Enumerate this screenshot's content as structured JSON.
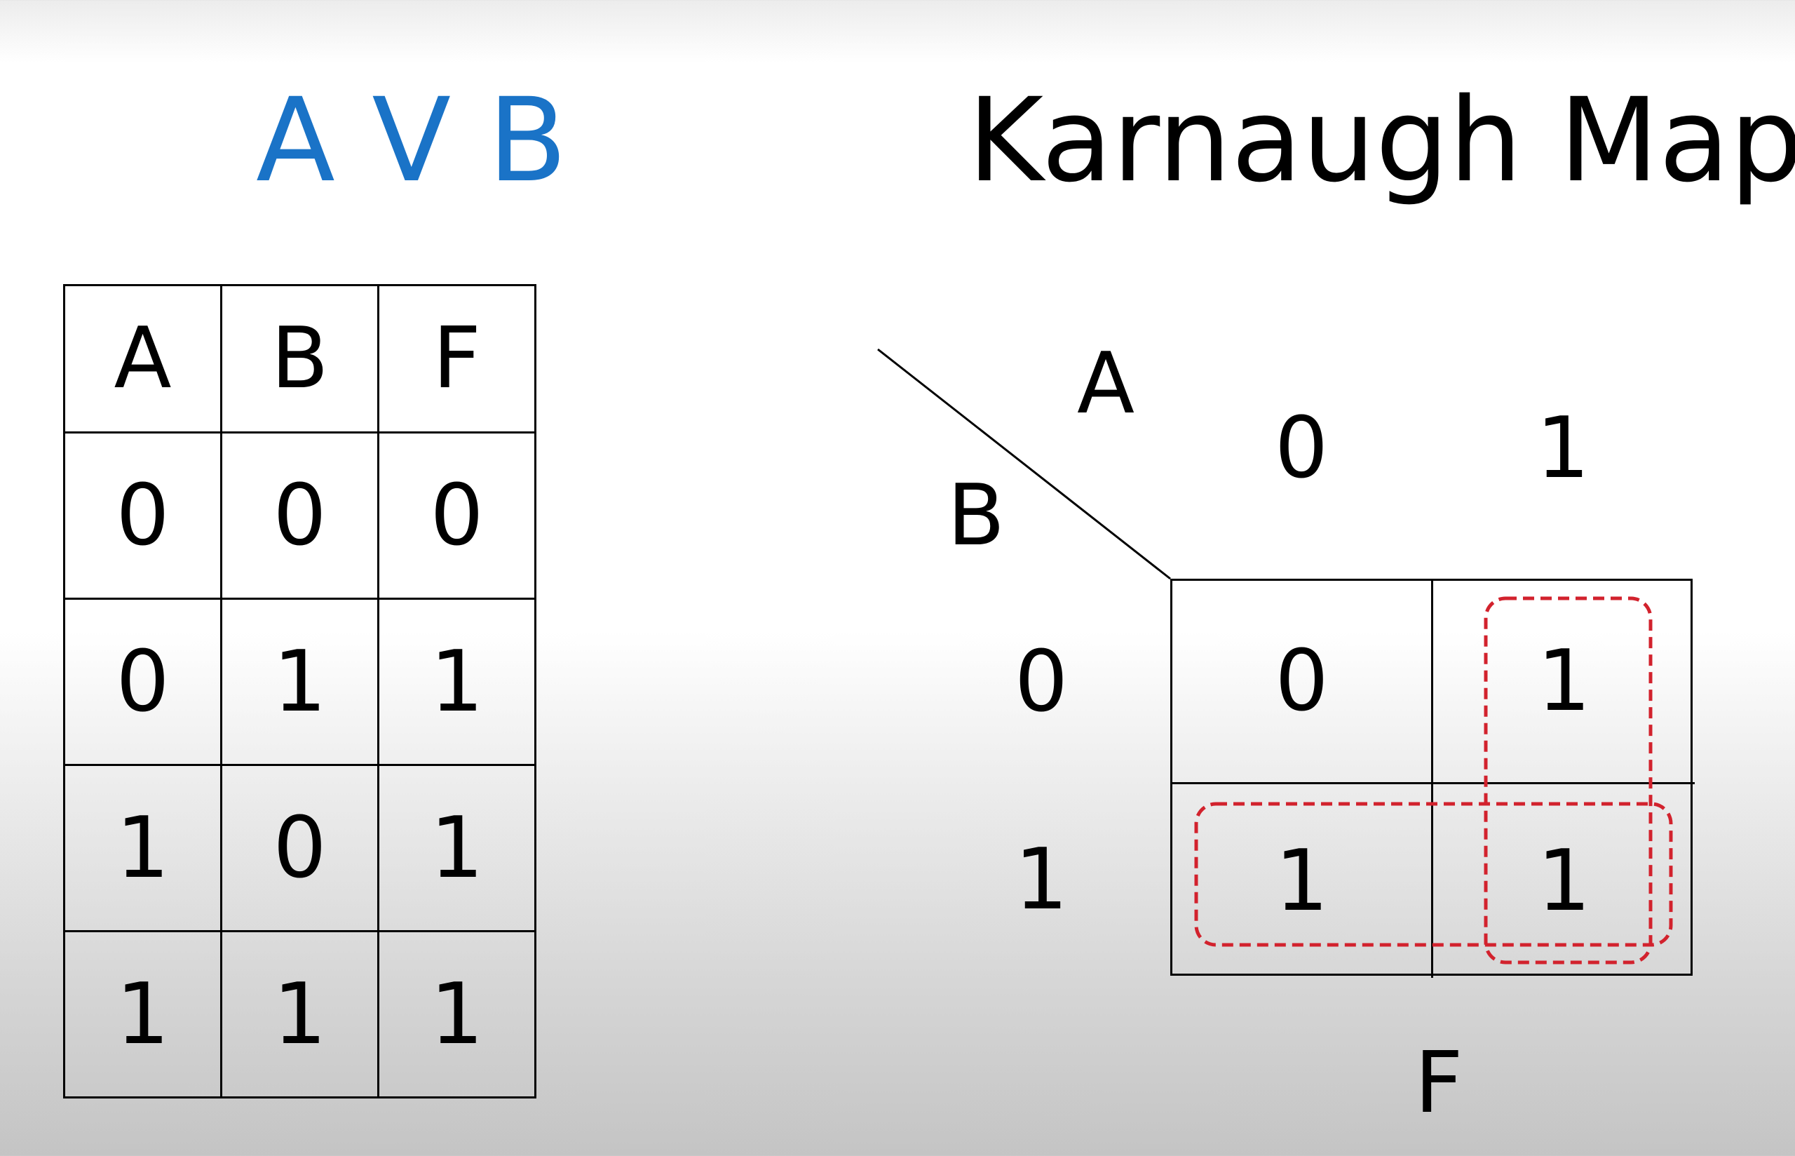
{
  "slide": {
    "expression": "A V B",
    "heading": "Karnaugh Map"
  },
  "truth_table": {
    "headers": [
      "A",
      "B",
      "F"
    ],
    "rows": [
      [
        "0",
        "0",
        "0"
      ],
      [
        "0",
        "1",
        "1"
      ],
      [
        "1",
        "0",
        "1"
      ],
      [
        "1",
        "1",
        "1"
      ]
    ]
  },
  "kmap": {
    "col_variable": "A",
    "row_variable": "B",
    "col_values": [
      "0",
      "1"
    ],
    "row_values": [
      "0",
      "1"
    ],
    "cells": [
      [
        "0",
        "1"
      ],
      [
        "1",
        "1"
      ]
    ],
    "output_label": "F",
    "grouping_color": "#d2222d",
    "expression_color": "#1a73c7"
  }
}
